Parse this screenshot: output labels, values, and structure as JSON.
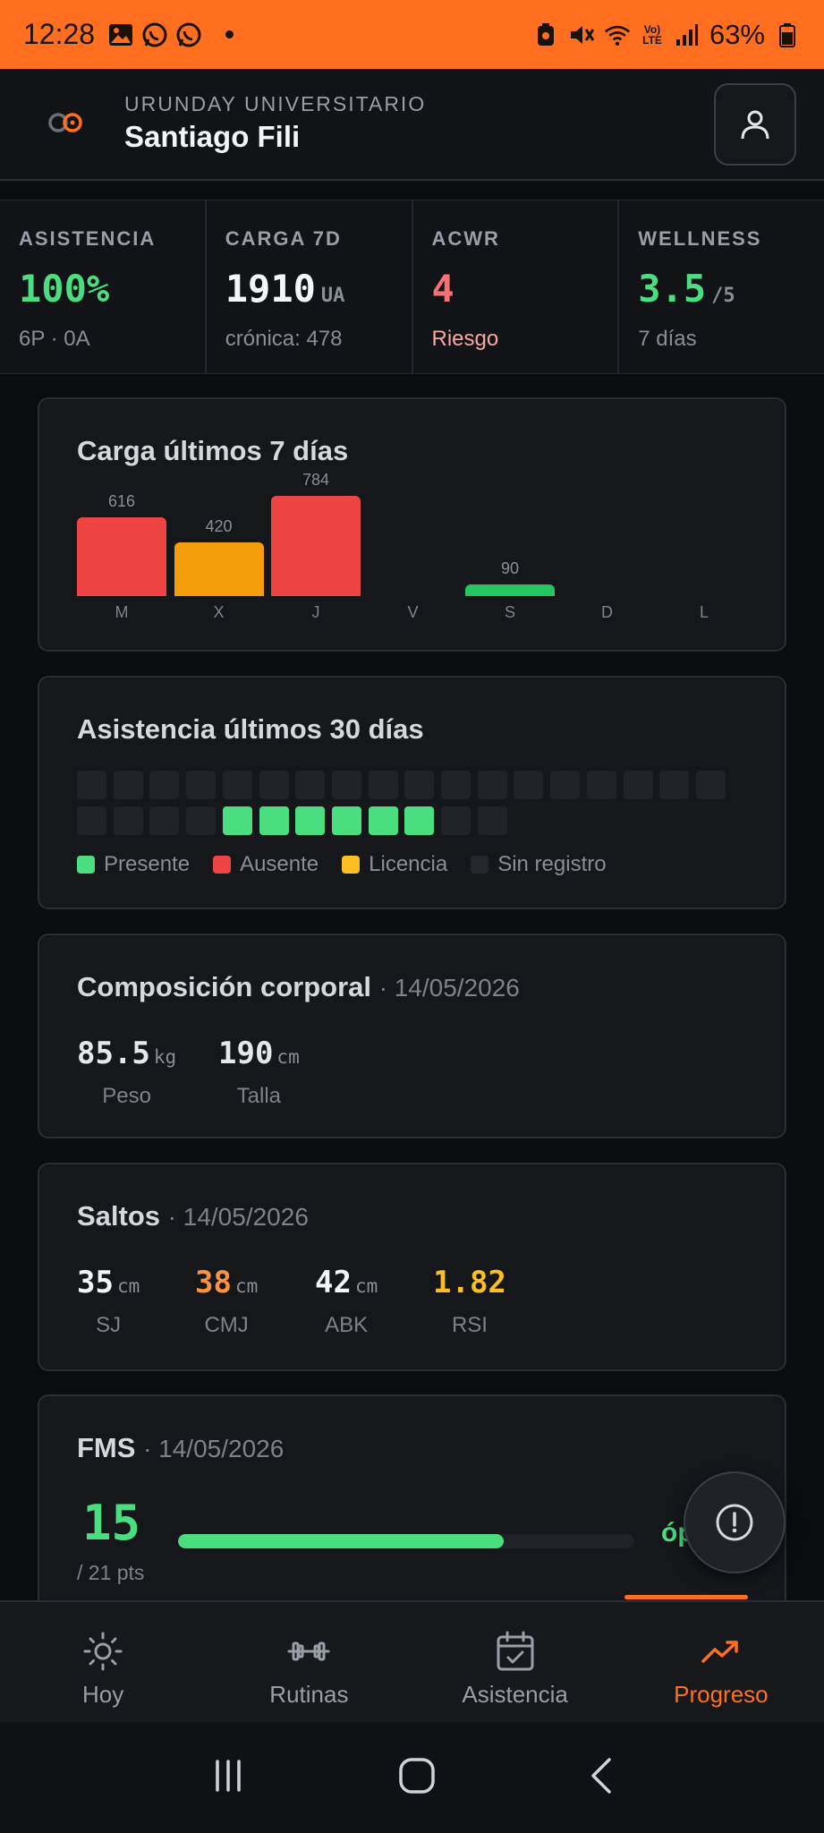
{
  "status_bar": {
    "time": "12:28",
    "battery": "63%",
    "lte_label": "LTE",
    "volte_label": "Vo)"
  },
  "header": {
    "club": "URUNDAY UNIVERSITARIO",
    "player": "Santiago Fili"
  },
  "stats": [
    {
      "label": "ASISTENCIA",
      "value": "100%",
      "unit": "",
      "sub": "6P · 0A",
      "color": "#4ade80"
    },
    {
      "label": "CARGA 7D",
      "value": "1910",
      "unit": "UA",
      "sub": "crónica: 478",
      "color": "#f4f5f7"
    },
    {
      "label": "ACWR",
      "value": "4",
      "unit": "",
      "sub": "Riesgo",
      "color": "#f87171"
    },
    {
      "label": "WELLNESS",
      "value": "3.5",
      "unit": "/5",
      "sub": "7 días",
      "color": "#4ade80"
    }
  ],
  "load_card": {
    "title": "Carga últimos 7 días",
    "days": [
      "M",
      "X",
      "J",
      "V",
      "S",
      "D",
      "L"
    ],
    "values": [
      616,
      420,
      784,
      null,
      90,
      null,
      null
    ],
    "colors": [
      "#ef4444",
      "#f59e0b",
      "#ef4444",
      "",
      "#22c55e",
      "",
      ""
    ],
    "max": 784
  },
  "attendance_card": {
    "title": "Asistencia últimos 30 días",
    "cells": [
      "none",
      "none",
      "none",
      "none",
      "none",
      "none",
      "none",
      "none",
      "none",
      "none",
      "none",
      "none",
      "none",
      "none",
      "none",
      "none",
      "none",
      "none",
      "none",
      "none",
      "none",
      "none",
      "present",
      "present",
      "present",
      "present",
      "present",
      "present",
      "none",
      "none"
    ],
    "legend": [
      {
        "label": "Presente",
        "color": "#4ade80"
      },
      {
        "label": "Ausente",
        "color": "#ef4444"
      },
      {
        "label": "Licencia",
        "color": "#fbbf24"
      },
      {
        "label": "Sin registro",
        "color": "#23262b"
      }
    ]
  },
  "body_card": {
    "title": "Composición corporal",
    "date": "· 14/05/2026",
    "metrics": [
      {
        "value": "85.5",
        "unit": "kg",
        "label": "Peso"
      },
      {
        "value": "190",
        "unit": "cm",
        "label": "Talla"
      }
    ]
  },
  "jumps_card": {
    "title": "Saltos",
    "date": "· 14/05/2026",
    "metrics": [
      {
        "value": "35",
        "unit": "cm",
        "label": "SJ",
        "color": "#f4f5f7"
      },
      {
        "value": "38",
        "unit": "cm",
        "label": "CMJ",
        "color": "#fb923c"
      },
      {
        "value": "42",
        "unit": "cm",
        "label": "ABK",
        "color": "#f4f5f7"
      },
      {
        "value": "1.82",
        "unit": "",
        "label": "RSI",
        "color": "#fbbf24"
      }
    ]
  },
  "fms_card": {
    "title": "FMS",
    "date": "· 14/05/2026",
    "score": "15",
    "max": "/ 21 pts",
    "fraction": 0.714,
    "label": "óp"
  },
  "bottom_nav": [
    {
      "label": "Hoy",
      "icon": "sun-icon",
      "active": false
    },
    {
      "label": "Rutinas",
      "icon": "dumbbell-icon",
      "active": false
    },
    {
      "label": "Asistencia",
      "icon": "calendar-check-icon",
      "active": false
    },
    {
      "label": "Progreso",
      "icon": "trending-up-icon",
      "active": true
    }
  ]
}
